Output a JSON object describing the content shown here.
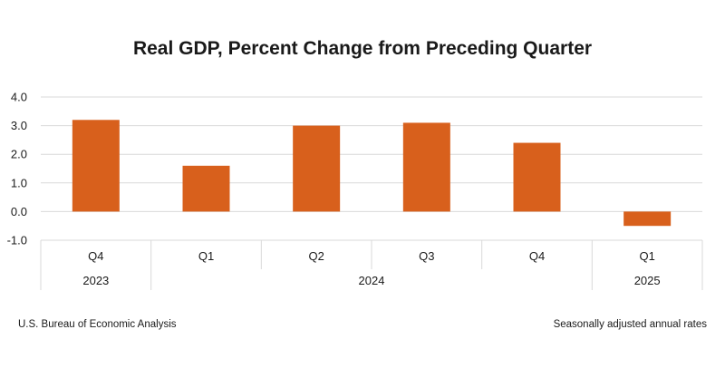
{
  "chart_data": {
    "type": "bar",
    "title": "Real GDP, Percent Change from Preceding Quarter",
    "categories": [
      "Q4",
      "Q1",
      "Q2",
      "Q3",
      "Q4",
      "Q1"
    ],
    "year_groups": [
      {
        "label": "2023",
        "span": 1
      },
      {
        "label": "2024",
        "span": 4
      },
      {
        "label": "2025",
        "span": 1
      }
    ],
    "values": [
      3.2,
      1.6,
      3.0,
      3.1,
      2.4,
      -0.5
    ],
    "yticks": [
      "4.0",
      "3.0",
      "2.0",
      "1.0",
      "0.0",
      "-1.0"
    ],
    "ylim": [
      -1.0,
      4.0
    ],
    "grid": true,
    "bar_color": "#d8601c",
    "grid_color": "#d9d9d9"
  },
  "footer": {
    "source": "U.S. Bureau of Economic Analysis",
    "note": "Seasonally adjusted annual rates"
  }
}
